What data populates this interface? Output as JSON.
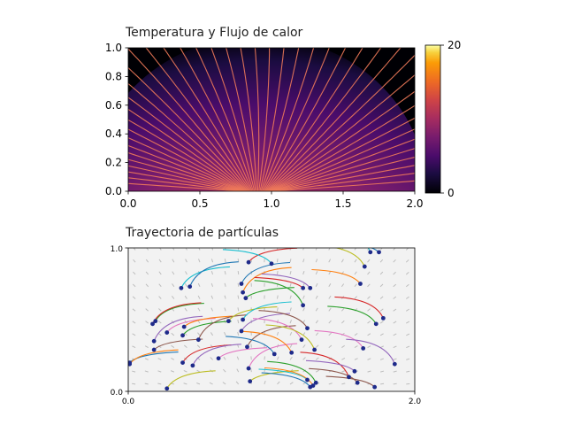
{
  "chart_data": [
    {
      "type": "heatmap",
      "title": "Temperatura y Flujo de calor",
      "xlabel": "",
      "ylabel": "",
      "xlim": [
        0.0,
        2.0
      ],
      "ylim": [
        0.0,
        1.0
      ],
      "xticks": [
        "0.0",
        "0.5",
        "1.0",
        "1.5",
        "2.0"
      ],
      "yticks": [
        "0.0",
        "0.2",
        "0.4",
        "0.6",
        "0.8",
        "1.0"
      ],
      "colormap": "inferno",
      "colorbar": {
        "min": 0,
        "max": 20,
        "ticks": [
          "0",
          "20"
        ]
      },
      "heat_source": {
        "x_range": [
          0.65,
          1.15
        ],
        "y": 0.0,
        "max_temperature": 20
      },
      "streamline_color": "#f07a5a"
    },
    {
      "type": "scatter",
      "title": "Trayectoria de partículas",
      "xlabel": "",
      "ylabel": "",
      "xlim": [
        0.0,
        2.0
      ],
      "ylim": [
        0.0,
        1.0
      ],
      "xticks": [
        "0.0",
        "2.0"
      ],
      "yticks": [
        "0.0",
        "1.0"
      ],
      "background_color": "#f2f2f2",
      "point_color": "#1e2a8a",
      "particles": [
        {
          "x": 0.01,
          "y": 0.2
        },
        {
          "x": 0.01,
          "y": 0.19
        },
        {
          "x": 0.19,
          "y": 0.49
        },
        {
          "x": 0.17,
          "y": 0.47
        },
        {
          "x": 0.18,
          "y": 0.35
        },
        {
          "x": 0.18,
          "y": 0.29
        },
        {
          "x": 0.27,
          "y": 0.41
        },
        {
          "x": 0.27,
          "y": 0.02
        },
        {
          "x": 0.37,
          "y": 0.72
        },
        {
          "x": 0.43,
          "y": 0.73
        },
        {
          "x": 0.39,
          "y": 0.45
        },
        {
          "x": 0.38,
          "y": 0.39
        },
        {
          "x": 0.38,
          "y": 0.2
        },
        {
          "x": 0.45,
          "y": 0.18
        },
        {
          "x": 0.49,
          "y": 0.36
        },
        {
          "x": 0.63,
          "y": 0.23
        },
        {
          "x": 0.7,
          "y": 0.49
        },
        {
          "x": 0.8,
          "y": 0.5
        },
        {
          "x": 0.79,
          "y": 0.75
        },
        {
          "x": 0.8,
          "y": 0.69
        },
        {
          "x": 0.82,
          "y": 0.65
        },
        {
          "x": 0.84,
          "y": 0.9
        },
        {
          "x": 0.79,
          "y": 0.42
        },
        {
          "x": 0.83,
          "y": 0.31
        },
        {
          "x": 0.84,
          "y": 0.16
        },
        {
          "x": 0.85,
          "y": 0.07
        },
        {
          "x": 1.0,
          "y": 0.89
        },
        {
          "x": 1.02,
          "y": 0.26
        },
        {
          "x": 1.14,
          "y": 0.27
        },
        {
          "x": 1.22,
          "y": 0.6
        },
        {
          "x": 1.22,
          "y": 0.72
        },
        {
          "x": 1.27,
          "y": 0.72
        },
        {
          "x": 1.25,
          "y": 0.44
        },
        {
          "x": 1.21,
          "y": 0.36
        },
        {
          "x": 1.3,
          "y": 0.29
        },
        {
          "x": 1.25,
          "y": 0.08
        },
        {
          "x": 1.27,
          "y": 0.03
        },
        {
          "x": 1.29,
          "y": 0.04
        },
        {
          "x": 1.31,
          "y": 0.06
        },
        {
          "x": 1.54,
          "y": 0.1
        },
        {
          "x": 1.58,
          "y": 0.14
        },
        {
          "x": 1.6,
          "y": 0.06
        },
        {
          "x": 1.64,
          "y": 0.3
        },
        {
          "x": 1.65,
          "y": 0.87
        },
        {
          "x": 1.69,
          "y": 0.97
        },
        {
          "x": 1.75,
          "y": 0.97
        },
        {
          "x": 1.62,
          "y": 0.75
        },
        {
          "x": 1.73,
          "y": 0.47
        },
        {
          "x": 1.78,
          "y": 0.51
        },
        {
          "x": 1.86,
          "y": 0.19
        },
        {
          "x": 1.72,
          "y": 0.03
        }
      ]
    }
  ]
}
